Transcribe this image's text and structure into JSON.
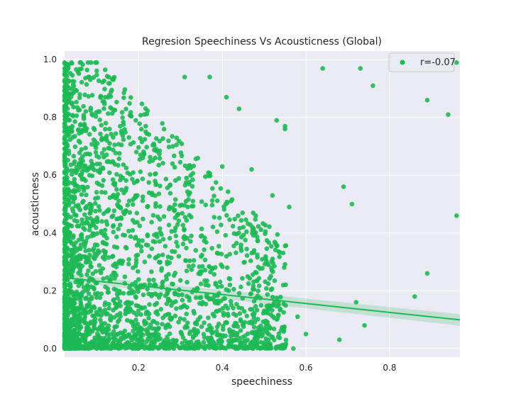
{
  "chart_data": {
    "type": "scatter",
    "title": "Regresion Speechiness Vs Acousticness (Global)",
    "xlabel": "speechiness",
    "ylabel": "acousticness",
    "xlim": [
      0.023,
      0.968
    ],
    "ylim": [
      -0.03,
      1.03
    ],
    "x_ticks": [
      0.2,
      0.4,
      0.6,
      0.8
    ],
    "x_tick_labels": [
      "0.2",
      "0.4",
      "0.6",
      "0.8"
    ],
    "y_ticks": [
      0.0,
      0.2,
      0.4,
      0.6,
      0.8,
      1.0
    ],
    "y_tick_labels": [
      "0.0",
      "0.2",
      "0.4",
      "0.6",
      "0.8",
      "1.0"
    ],
    "grid": true,
    "background": "#eaeaf2",
    "legend": {
      "position": "top-right",
      "label": "r=-0.07"
    },
    "colors": {
      "points": "#1db954",
      "line": "#1db954",
      "band": "#1db954"
    },
    "series": [
      {
        "name": "r=-0.07",
        "points": [
          [
            0.64,
            0.97
          ],
          [
            0.73,
            0.97
          ],
          [
            0.76,
            0.91
          ],
          [
            0.89,
            0.86
          ],
          [
            0.96,
            0.99
          ],
          [
            0.94,
            0.81
          ],
          [
            0.69,
            0.56
          ],
          [
            0.71,
            0.5
          ],
          [
            0.96,
            0.46
          ],
          [
            0.89,
            0.26
          ],
          [
            0.86,
            0.18
          ],
          [
            0.72,
            0.16
          ],
          [
            0.74,
            0.08
          ],
          [
            0.68,
            0.03
          ],
          [
            0.6,
            0.05
          ],
          [
            0.57,
            0.0
          ],
          [
            0.58,
            0.11
          ],
          [
            0.55,
            0.76
          ],
          [
            0.53,
            0.79
          ],
          [
            0.55,
            0.77
          ],
          [
            0.56,
            0.49
          ],
          [
            0.52,
            0.53
          ],
          [
            0.47,
            0.62
          ],
          [
            0.41,
            0.87
          ],
          [
            0.44,
            0.83
          ],
          [
            0.37,
            0.94
          ],
          [
            0.4,
            0.63
          ],
          [
            0.51,
            0.29
          ],
          [
            0.48,
            0.46
          ],
          [
            0.52,
            0.04
          ],
          [
            0.49,
            0.05
          ],
          [
            0.31,
            0.94
          ],
          [
            0.12,
            0.87
          ],
          [
            0.02,
            0.99
          ],
          [
            0.03,
            0.97
          ],
          [
            0.06,
            0.99
          ],
          [
            0.08,
            0.94
          ],
          [
            0.1,
            0.99
          ],
          [
            0.06,
            0.48
          ]
        ],
        "cluster_note": ""
      }
    ],
    "dense_region": {
      "x_range": [
        0.023,
        0.55
      ],
      "density": "very high near x < 0.1, decreasing with x"
    },
    "regression": {
      "x": [
        0.023,
        0.968
      ],
      "y": [
        0.245,
        0.099
      ],
      "ci_half_width": [
        0.012,
        0.02
      ],
      "r": -0.07
    }
  }
}
